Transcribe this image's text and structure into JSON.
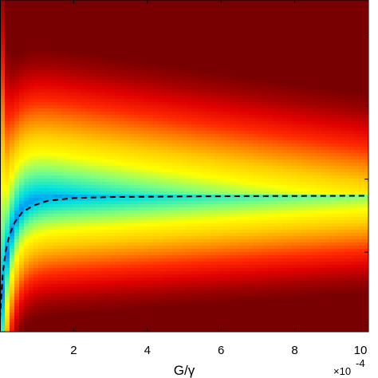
{
  "chart_data": {
    "type": "heatmap",
    "title": "",
    "xlabel": "G/γ",
    "ylabel": "",
    "x_scale_note": "×10",
    "x_scale_exponent": "-4",
    "xlim": [
      0,
      10
    ],
    "x_ticks": [
      "2",
      "4",
      "6",
      "8",
      "10"
    ],
    "x_tick_values": [
      2,
      4,
      6,
      8,
      10
    ],
    "colormap": [
      "#0070ff",
      "#00e0e0",
      "#7fff7f",
      "#ffff00",
      "#ffcc00",
      "#ff8000",
      "#ff2800",
      "#e00000",
      "#a00000",
      "#780000"
    ],
    "asymptote_y_fraction_from_bottom": 0.41,
    "grid": false,
    "legend": "none",
    "contour_line": {
      "style": "dashed",
      "color": "#000000",
      "points": [
        [
          0.0,
          0.04
        ],
        [
          0.03,
          0.1
        ],
        [
          0.08,
          0.18
        ],
        [
          0.15,
          0.24
        ],
        [
          0.25,
          0.29
        ],
        [
          0.4,
          0.33
        ],
        [
          0.6,
          0.36
        ],
        [
          0.9,
          0.38
        ],
        [
          1.3,
          0.395
        ],
        [
          2.0,
          0.403
        ],
        [
          3.0,
          0.406
        ],
        [
          5.0,
          0.408
        ],
        [
          7.0,
          0.409
        ],
        [
          10.0,
          0.41
        ]
      ]
    }
  }
}
